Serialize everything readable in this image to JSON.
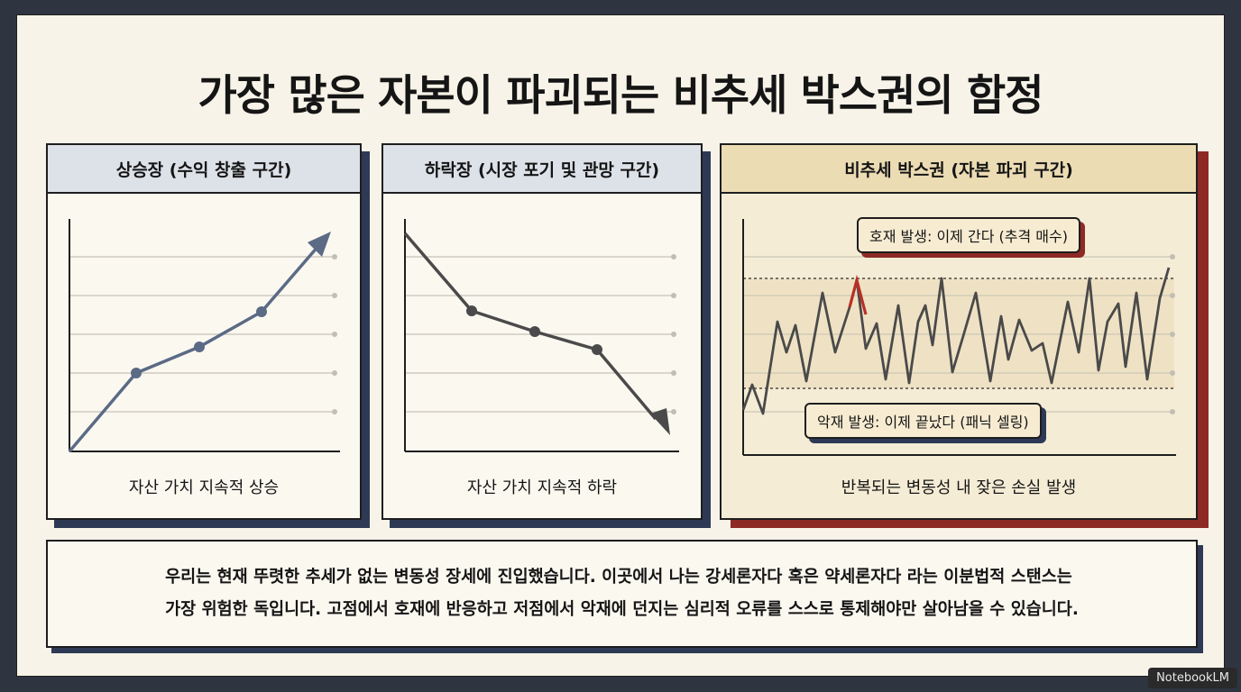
{
  "title": "가장 많은 자본이 파괴되는 비추세 박스권의 함정",
  "panels": [
    {
      "header": "상승장 (수익 창출 구간)",
      "caption": "자산 가치 지속적 상승",
      "line_color": "#5b6a85",
      "trend": [
        0,
        40,
        54,
        73,
        100
      ]
    },
    {
      "header": "하락장 (시장 포기 및 관망 구간)",
      "caption": "자산 가치 지속적 하락",
      "line_color": "#4a4a4a",
      "trend": [
        100,
        70,
        62,
        52,
        10
      ]
    },
    {
      "header": "비추세 박스권 (자본 파괴 구간)",
      "caption": "반복되는 변동성 내 잦은 손실 발생",
      "line_color": "#4a4a4a",
      "highlight_color": "#b83028",
      "callout_good": "호재 발생: 이제 간다 (추격 매수)",
      "callout_bad": "악재 발생: 이제 끝났다 (패닉 셀링)"
    }
  ],
  "summary": {
    "line1": "우리는 현재 뚜렷한 추세가 없는 변동성 장세에 진입했습니다. 이곳에서 나는 강세론자다 혹은 약세론자다 라는 이분법적 스탠스는",
    "line2": "가장 위험한 독입니다. 고점에서 호재에 반응하고 저점에서 악재에 던지는 심리적 오류를 스스로 통제해야만 살아남을 수 있습니다."
  },
  "watermark": "NotebookLM",
  "colors": {
    "accent_navy": "#2e3a55",
    "accent_red": "#8e2a26"
  }
}
